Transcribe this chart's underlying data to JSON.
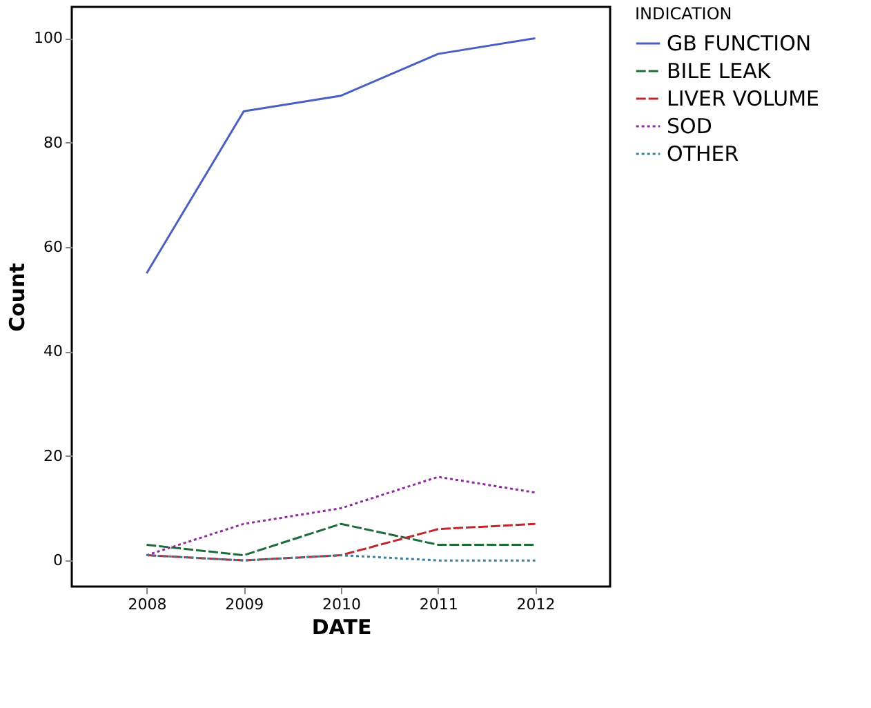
{
  "chart_data": {
    "type": "line",
    "xlabel": "DATE",
    "ylabel": "Count",
    "legend_title": "INDICATION",
    "x": [
      2008,
      2009,
      2010,
      2011,
      2012
    ],
    "xlim": [
      2007.23,
      2012.77
    ],
    "xticks": [
      2008,
      2009,
      2010,
      2011,
      2012
    ],
    "ylim": [
      -5,
      106
    ],
    "yticks": [
      0,
      20,
      40,
      60,
      80,
      100
    ],
    "series": [
      {
        "name": "GB FUNCTION",
        "color": "#4a5fc1",
        "line_style": "solid",
        "values": [
          55,
          86,
          89,
          97,
          100
        ]
      },
      {
        "name": "BILE LEAK",
        "color": "#1e6b3a",
        "line_style": "dashed",
        "values": [
          3,
          1,
          7,
          3,
          3
        ]
      },
      {
        "name": "LIVER VOLUME",
        "color": "#c0272d",
        "line_style": "dashed",
        "values": [
          1,
          0,
          1,
          6,
          7
        ]
      },
      {
        "name": "SOD",
        "color": "#8e2a9e",
        "line_style": "dotted",
        "values": [
          1,
          7,
          10,
          16,
          13
        ]
      },
      {
        "name": "OTHER",
        "color": "#3a7f9a",
        "line_style": "dotted",
        "values": [
          1,
          0,
          1,
          0,
          0
        ]
      }
    ],
    "grid": false,
    "legend": "top right",
    "marker": "none"
  }
}
